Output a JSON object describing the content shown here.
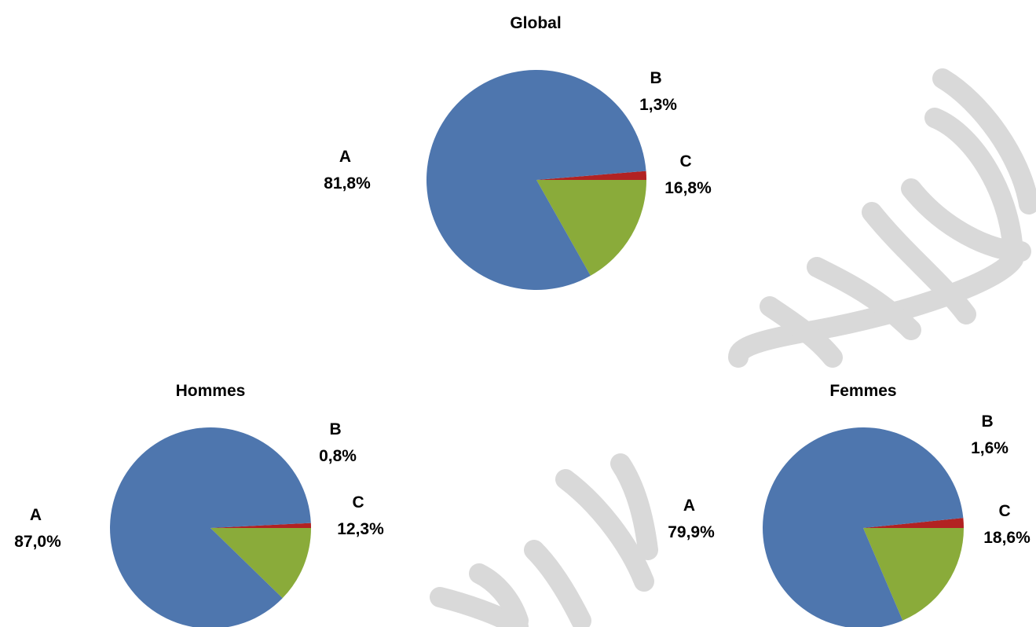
{
  "colors": {
    "A": "#4e76ae",
    "B": "#b22222",
    "C": "#8aab3a",
    "watermark": "#d9d9d9"
  },
  "chart_data": [
    {
      "type": "pie",
      "title": "Global",
      "slices": [
        {
          "label": "A",
          "value": 81.8,
          "value_text": "81,8%"
        },
        {
          "label": "B",
          "value": 1.3,
          "value_text": "1,3%"
        },
        {
          "label": "C",
          "value": 16.8,
          "value_text": "16,8%"
        }
      ]
    },
    {
      "type": "pie",
      "title": "Hommes",
      "slices": [
        {
          "label": "A",
          "value": 87.0,
          "value_text": "87,0%"
        },
        {
          "label": "B",
          "value": 0.8,
          "value_text": "0,8%"
        },
        {
          "label": "C",
          "value": 12.3,
          "value_text": "12,3%"
        }
      ]
    },
    {
      "type": "pie",
      "title": "Femmes",
      "slices": [
        {
          "label": "A",
          "value": 79.9,
          "value_text": "79,9%"
        },
        {
          "label": "B",
          "value": 1.6,
          "value_text": "1,6%"
        },
        {
          "label": "C",
          "value": 18.6,
          "value_text": "18,6%"
        }
      ]
    }
  ]
}
